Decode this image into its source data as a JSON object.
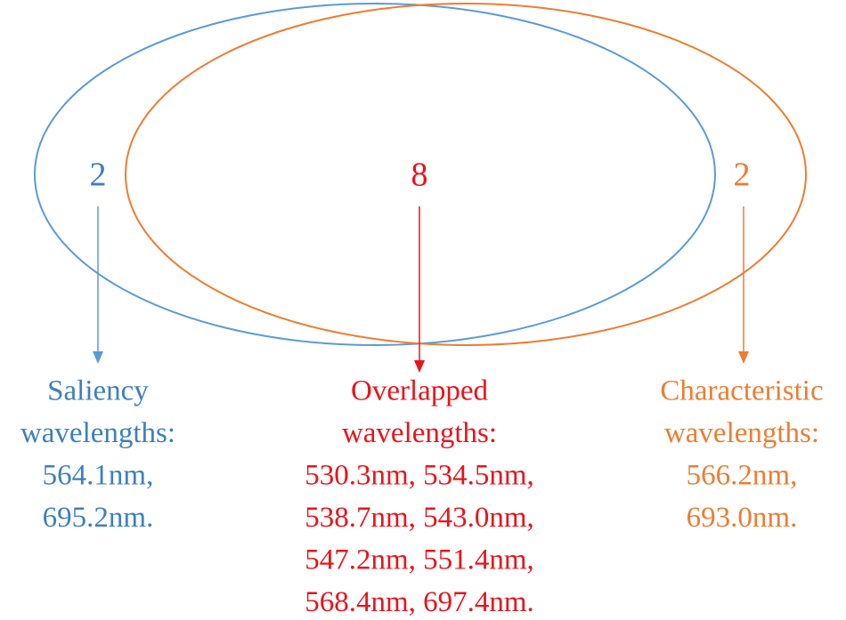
{
  "regions": [
    {
      "count": 2,
      "label": [
        "Saliency",
        "wavelengths:",
        "564.1nm,",
        "695.2nm."
      ]
    },
    {
      "count": 8,
      "label": [
        "Overlapped",
        "wavelengths:",
        "530.3nm, 534.5nm,",
        "538.7nm, 543.0nm,",
        "547.2nm, 551.4nm,",
        "568.4nm, 697.4nm."
      ]
    },
    {
      "count": 2,
      "label": [
        "Characteristic",
        "wavelengths:",
        "566.2nm,",
        "693.0nm."
      ]
    }
  ]
}
